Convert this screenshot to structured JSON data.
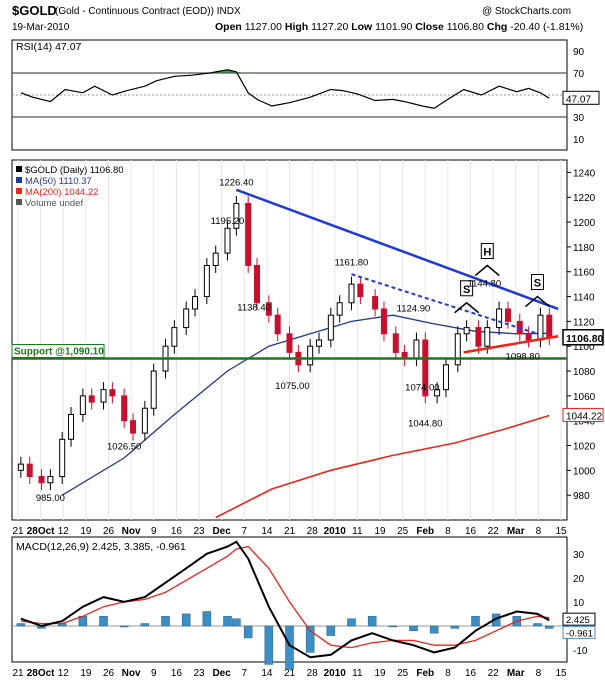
{
  "header": {
    "symbol": "$GOLD",
    "description": "(Gold - Continuous Contract (EOD)) INDX",
    "date": "19-Mar-2010",
    "watermark": "@ StockCharts.com",
    "ohlc": {
      "open_label": "Open",
      "open": "1127.00",
      "high_label": "High",
      "high": "1127.20",
      "low_label": "Low",
      "low": "1101.90",
      "close_label": "Close",
      "close": "1106.80",
      "chg_label": "Chg",
      "chg": "-20.40",
      "chg_pct": "(-1.81%)"
    }
  },
  "colors": {
    "price_up": "#000000",
    "price_down": "#c8102e",
    "ma50": "#1f3a93",
    "ma200": "#e8261c",
    "trendline": "#1f3ad8",
    "support": "#1a7a1a",
    "macd": "#000000",
    "signal": "#e8261c",
    "histogram": "#3d8ec4",
    "rsi_fill": "#2e7d32"
  },
  "chart_data": [
    {
      "type": "line",
      "panel": "RSI",
      "legend": [
        "RSI(14) 47.07"
      ],
      "ylim": [
        0,
        100
      ],
      "y_ticks": [
        10,
        30,
        50,
        70,
        90
      ],
      "reference_lines": [
        30,
        70
      ],
      "last_value_label": "47.07",
      "x": [
        "2009-09-21",
        "2009-09-25",
        "2009-10-01",
        "2009-10-06",
        "2009-10-12",
        "2009-10-16",
        "2009-10-22",
        "2009-10-27",
        "2009-11-02",
        "2009-11-06",
        "2009-11-12",
        "2009-11-18",
        "2009-11-24",
        "2009-11-30",
        "2009-12-03",
        "2009-12-07",
        "2009-12-10",
        "2009-12-15",
        "2009-12-21",
        "2009-12-28",
        "2010-01-04",
        "2010-01-08",
        "2010-01-13",
        "2010-01-19",
        "2010-01-25",
        "2010-01-29",
        "2010-02-04",
        "2010-02-08",
        "2010-02-12",
        "2010-02-18",
        "2010-02-24",
        "2010-03-02",
        "2010-03-08",
        "2010-03-12",
        "2010-03-16",
        "2010-03-19"
      ],
      "values": [
        52,
        48,
        44,
        55,
        52,
        58,
        50,
        54,
        58,
        63,
        67,
        68,
        70,
        73,
        71,
        52,
        46,
        40,
        43,
        48,
        55,
        54,
        51,
        45,
        46,
        44,
        40,
        38,
        45,
        55,
        50,
        58,
        53,
        56,
        52,
        47
      ]
    },
    {
      "type": "bar",
      "panel": "Price",
      "title": "",
      "legend": [
        "$GOLD (Daily) 1106.80",
        "MA(50) 1110.37",
        "MA(200) 1044.22",
        "Volume undef"
      ],
      "ylim": [
        960,
        1250
      ],
      "y_ticks": [
        980,
        1000,
        1020,
        1040,
        1060,
        1080,
        1100,
        1120,
        1140,
        1160,
        1180,
        1200,
        1220,
        1240
      ],
      "x_tick_labels": [
        "21",
        "28Oct",
        "12",
        "19",
        "26",
        "Nov",
        "9",
        "16",
        "23",
        "Dec",
        "7",
        "14",
        "21",
        "28",
        "2010",
        "11",
        "19",
        "25",
        "Feb",
        "8",
        "16",
        "22",
        "Mar",
        "8",
        "15"
      ],
      "price_labels": [
        {
          "date": "2009-10-01",
          "value": 985.0,
          "label": "985.00"
        },
        {
          "date": "2009-10-26",
          "value": 1026.5,
          "label": "1026.50"
        },
        {
          "date": "2009-11-30",
          "value": 1195.2,
          "label": "1195.20"
        },
        {
          "date": "2009-12-03",
          "value": 1226.4,
          "label": "1226.40"
        },
        {
          "date": "2009-12-09",
          "value": 1138.4,
          "label": "1138.40"
        },
        {
          "date": "2009-12-22",
          "value": 1075.0,
          "label": "1075.00"
        },
        {
          "date": "2010-01-11",
          "value": 1161.8,
          "label": "1161.80"
        },
        {
          "date": "2010-02-01",
          "value": 1124.9,
          "label": "1124.90"
        },
        {
          "date": "2010-02-04",
          "value": 1074.0,
          "label": "1074.00"
        },
        {
          "date": "2010-02-05",
          "value": 1044.8,
          "label": "1044.80"
        },
        {
          "date": "2010-02-25",
          "value": 1144.8,
          "label": "1144.80"
        },
        {
          "date": "2010-03-10",
          "value": 1098.8,
          "label": "1098.80"
        }
      ],
      "annotations": {
        "support_label": "Support @1,090.10",
        "support_value": 1090.1,
        "shoulder_left": "S",
        "head": "H",
        "shoulder_right": "S"
      },
      "last_price_label": "1106.80",
      "ma200_last_label": "1044.22",
      "ohlc_x": [
        "2009-09-21",
        "2009-09-24",
        "2009-09-28",
        "2009-10-01",
        "2009-10-05",
        "2009-10-08",
        "2009-10-12",
        "2009-10-15",
        "2009-10-19",
        "2009-10-22",
        "2009-10-26",
        "2009-10-29",
        "2009-11-02",
        "2009-11-05",
        "2009-11-09",
        "2009-11-12",
        "2009-11-16",
        "2009-11-19",
        "2009-11-23",
        "2009-11-26",
        "2009-11-30",
        "2009-12-03",
        "2009-12-07",
        "2009-12-10",
        "2009-12-14",
        "2009-12-17",
        "2009-12-21",
        "2009-12-24",
        "2009-12-28",
        "2009-12-31",
        "2010-01-04",
        "2010-01-07",
        "2010-01-11",
        "2010-01-14",
        "2010-01-19",
        "2010-01-22",
        "2010-01-26",
        "2010-01-29",
        "2010-02-02",
        "2010-02-05",
        "2010-02-09",
        "2010-02-12",
        "2010-02-16",
        "2010-02-19",
        "2010-02-23",
        "2010-02-26",
        "2010-03-02",
        "2010-03-05",
        "2010-03-09",
        "2010-03-12",
        "2010-03-16",
        "2010-03-19"
      ],
      "ohlc_close": [
        1005,
        995,
        990,
        995,
        1025,
        1045,
        1060,
        1055,
        1065,
        1060,
        1040,
        1030,
        1050,
        1080,
        1100,
        1115,
        1130,
        1140,
        1165,
        1175,
        1195,
        1215,
        1165,
        1135,
        1125,
        1110,
        1095,
        1085,
        1100,
        1105,
        1125,
        1135,
        1150,
        1140,
        1130,
        1110,
        1095,
        1090,
        1105,
        1060,
        1065,
        1085,
        1110,
        1115,
        1100,
        1115,
        1130,
        1120,
        1110,
        1105,
        1125,
        1106.8
      ]
    },
    {
      "type": "line",
      "panel": "MACD",
      "legend": [
        "MACD(12,26,9) 2.425, 3.385, -0.961"
      ],
      "ylim": [
        -15,
        37
      ],
      "y_ticks": [
        -10,
        0,
        10,
        20,
        30
      ],
      "last_value_labels": [
        "2.425",
        "-0.961"
      ],
      "x": [
        "2009-09-21",
        "2009-09-28",
        "2009-10-05",
        "2009-10-12",
        "2009-10-19",
        "2009-10-26",
        "2009-11-02",
        "2009-11-09",
        "2009-11-16",
        "2009-11-23",
        "2009-11-30",
        "2009-12-03",
        "2009-12-07",
        "2009-12-14",
        "2009-12-21",
        "2009-12-28",
        "2010-01-04",
        "2010-01-11",
        "2010-01-18",
        "2010-01-25",
        "2010-02-01",
        "2010-02-08",
        "2010-02-15",
        "2010-02-22",
        "2010-03-01",
        "2010-03-08",
        "2010-03-15",
        "2010-03-19"
      ],
      "series": [
        {
          "name": "MACD",
          "values": [
            3,
            0,
            2,
            8,
            12,
            10,
            12,
            18,
            24,
            30,
            33,
            35,
            28,
            8,
            -8,
            -13,
            -12,
            -6,
            -3,
            -6,
            -8,
            -11,
            -9,
            -2,
            3,
            6,
            5,
            2.4
          ]
        },
        {
          "name": "Signal",
          "values": [
            2,
            1,
            1,
            4,
            8,
            10,
            11,
            14,
            19,
            24,
            29,
            32,
            33,
            24,
            10,
            -2,
            -8,
            -9,
            -7,
            -6,
            -6,
            -8,
            -8,
            -6,
            -2,
            2,
            4,
            3.4
          ]
        },
        {
          "name": "Histogram",
          "values": [
            1,
            -1,
            1,
            4,
            4,
            0,
            1,
            4,
            5,
            6,
            4,
            3,
            -5,
            -16,
            -18,
            -11,
            -4,
            3,
            4,
            0,
            -2,
            -3,
            -1,
            4,
            5,
            4,
            1,
            -1.0
          ]
        }
      ]
    }
  ]
}
